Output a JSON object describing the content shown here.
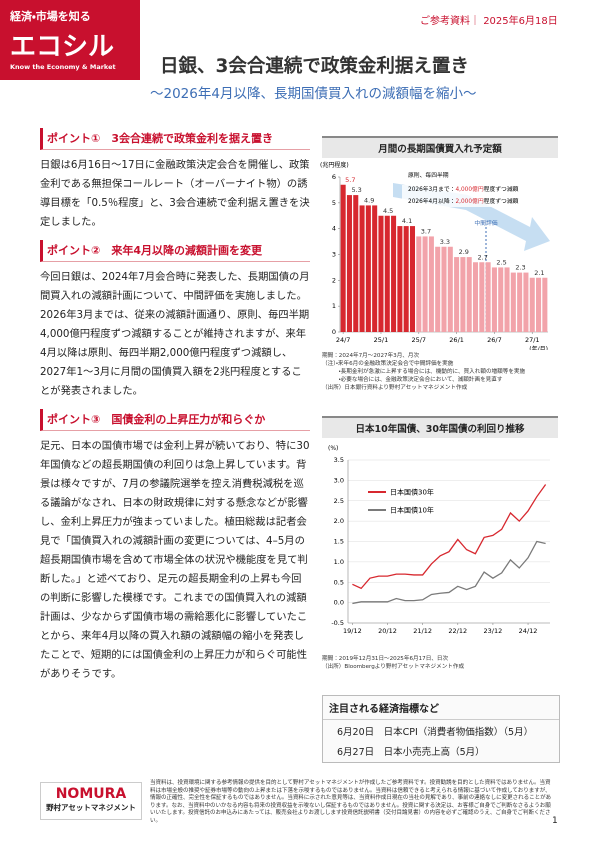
{
  "header": {
    "tagline": "経済・市場を知る",
    "logo": "エコシル",
    "logo_sub": "Know the Economy & Market",
    "doc_type": "ご参考資料",
    "date": "2025年6月18日",
    "title": "日銀、3会合連続で政策金利据え置き",
    "subtitle": "～2026年4月以降、長期国債買入れの減額幅を縮小～"
  },
  "points": [
    {
      "heading": "ポイント①　3会合連続で政策金利を据え置き",
      "text": "日銀は6月16日～17日に金融政策決定会合を開催し、政策金利である無担保コールレート（オーバーナイト物）の誘導目標を「0.5％程度」と、3会合連続で金利据え置きを決定しました。"
    },
    {
      "heading": "ポイント②　来年4月以降の減額計画を変更",
      "text": "今回日銀は、2024年7月会合時に発表した、長期国債の月間買入れの減額計画について、中間評価を実施しました。2026年3月までは、従来の減額計画通り、原則、毎四半期4,000億円程度ずつ減額することが維持されますが、来年4月以降は原則、毎四半期2,000億円程度ずつ減額し、2027年1～3月に月間の国債買入額を2兆円程度とすることが発表されました。"
    },
    {
      "heading": "ポイント③　国債金利の上昇圧力が和らぐか",
      "text": "足元、日本の国債市場では金利上昇が続いており、特に30年国債などの超長期国債の利回りは急上昇しています。背景は様々ですが、7月の参議院選挙を控え消費税減税を巡る議論がなされ、日本の財政規律に対する懸念などが影響し、金利上昇圧力が強まっていました。植田総裁は記者会見で「国債買入れの減額計画の変更については、4–5月の超長期国債市場を含めて市場全体の状況や機能度を見て判断した。」と述べており、足元の超長期金利の上昇も今回の判断に影響した模様です。これまでの国債買入れの減額計画は、少なからず国債市場の需給悪化に影響していたことから、来年4月以降の買入れ額の減額幅の縮小を発表したことで、短期的には国債金利の上昇圧力が和らぐ可能性がありそうです。"
    }
  ],
  "chart_data": [
    {
      "type": "bar",
      "title": "月間の長期国債買入れ予定額",
      "y_label": "(兆円程度)",
      "x_label": "(年/月)",
      "categories": [
        "24/7",
        null,
        null,
        null,
        null,
        null,
        "25/1",
        null,
        null,
        null,
        null,
        null,
        "25/7",
        null,
        null,
        null,
        null,
        null,
        "26/1",
        null,
        null,
        null,
        null,
        null,
        "26/7",
        null,
        null,
        null,
        null,
        null,
        "27/1",
        null,
        null
      ],
      "values": [
        5.7,
        5.3,
        5.3,
        4.9,
        4.9,
        4.9,
        4.5,
        4.5,
        4.5,
        4.1,
        4.1,
        4.1,
        3.7,
        3.7,
        3.7,
        3.3,
        3.3,
        3.3,
        2.9,
        2.9,
        2.9,
        2.7,
        2.7,
        2.7,
        2.5,
        2.5,
        2.5,
        2.3,
        2.3,
        2.3,
        2.1,
        2.1,
        2.1
      ],
      "value_labels": [
        "5.7",
        "5.3",
        null,
        "4.9",
        null,
        null,
        "4.5",
        null,
        null,
        "4.1",
        null,
        null,
        "3.7",
        null,
        null,
        "3.3",
        null,
        null,
        "2.9",
        null,
        null,
        "2.7",
        null,
        null,
        "2.5",
        null,
        null,
        "2.3",
        null,
        null,
        "2.1",
        null,
        null
      ],
      "colors": [
        "#d7282f",
        "#d7282f",
        "#d7282f",
        "#d7282f",
        "#d7282f",
        "#d7282f",
        "#d7282f",
        "#d7282f",
        "#d7282f",
        "#d7282f",
        "#d7282f",
        "#d7282f",
        "#f2a3aa",
        "#f2a3aa",
        "#f2a3aa",
        "#f2a3aa",
        "#f2a3aa",
        "#f2a3aa",
        "#f2a3aa",
        "#f2a3aa",
        "#f2a3aa",
        "#f2a3aa",
        "#f2a3aa",
        "#f2a3aa",
        "#f2a3aa",
        "#f2a3aa",
        "#f2a3aa",
        "#f2a3aa",
        "#f2a3aa",
        "#f2a3aa",
        "#f2a3aa",
        "#f2a3aa",
        "#f2a3aa"
      ],
      "ylim": [
        0,
        6
      ],
      "yticks": [
        0,
        1,
        2,
        3,
        4,
        5,
        6
      ],
      "grid": false,
      "annotations": {
        "rule": "原則、毎四半期",
        "before_prefix": "2026年3月まで：",
        "before_amount": "4,000億円",
        "before_suffix": "程度ずつ減額",
        "after_prefix": "2026年4月以降：",
        "after_amount": "2,000億円",
        "after_suffix": "程度ずつ減額",
        "review": "中間評価"
      },
      "notes": [
        "期間：2024年7月～2027年3月、月次",
        "（注）・来年6月の金融政策決定会合で中間評価を実施",
        "　　　・長期金利が急激に上昇する場合には、機動的に、買入れ額の増額等を実施",
        "　　　・必要な場合には、金融政策決定会合において、減額計画を見直す",
        "（出所）日本銀行資料より野村アセットマネジメント作成"
      ]
    },
    {
      "type": "line",
      "title": "日本10年国債、30年国債の利回り推移",
      "y_label": "(%)",
      "categories": [
        "19/12",
        null,
        null,
        null,
        "20/12",
        null,
        null,
        null,
        "21/12",
        null,
        null,
        null,
        "22/12",
        null,
        null,
        null,
        "23/12",
        null,
        null,
        null,
        "24/12",
        null,
        null
      ],
      "series": [
        {
          "name": "日本国債30年",
          "color": "#d7282f",
          "values": [
            0.45,
            0.35,
            0.6,
            0.65,
            0.65,
            0.7,
            0.7,
            0.68,
            0.68,
            0.95,
            1.15,
            1.25,
            1.55,
            1.3,
            1.2,
            1.6,
            1.65,
            1.8,
            2.2,
            2.0,
            2.25,
            2.6,
            2.9
          ]
        },
        {
          "name": "日本国債10年",
          "color": "#7a7a7a",
          "values": [
            -0.02,
            0.02,
            0.02,
            0.02,
            0.02,
            0.1,
            0.05,
            0.05,
            0.07,
            0.2,
            0.23,
            0.25,
            0.4,
            0.32,
            0.4,
            0.75,
            0.6,
            0.73,
            1.05,
            0.85,
            1.1,
            1.5,
            1.45
          ]
        }
      ],
      "ylim": [
        -0.5,
        3.5
      ],
      "yticks": [
        -0.5,
        {
          "value": 0,
          "label": "0.0"
        },
        0.5,
        {
          "value": 1,
          "label": "1.0"
        },
        1.5,
        {
          "value": 2,
          "label": "2.0"
        },
        2.5,
        {
          "value": 3,
          "label": "3.0"
        },
        3.5
      ],
      "grid": true,
      "notes": [
        "期間：2019年12月31日～2025年6月17日、日次",
        "（出所）Bloombergより野村アセットマネジメント作成"
      ]
    }
  ],
  "indicators": {
    "title": "注目される経済指標など",
    "items": [
      "6月20日　日本CPI（消費者物価指数）（5月）",
      "6月27日　日本小売売上高（5月）"
    ]
  },
  "footer": {
    "brand": "NOMURA",
    "company": "野村アセットマネジメント",
    "page": "1",
    "disclaimer": "当資料は、投資環境に関する参考情報の提供を目的として野村アセットマネジメントが作成したご参考資料です。投資勧誘を目的とした資料ではありません。当資料は市場全般の推奨や証券市場等の動向の上昇または下落を示唆するものではありません。当資料は信頼できると考えられる情報に基づいて作成しておりますが、情報の正確性、完全性を保証するものではありません。当資料に示された意見等は、当資料作成日現在の当社の見解であり、事前の連絡なしに変更されることがあります。なお、当資料中のいかなる内容も将来の投資収益を示唆ないし保証するものではありません。投資に関する決定は、お客様ご自身でご判断なさるようお願いいたします。投資信託のお申込みにあたっては、販売会社よりお渡しします投資信託説明書（交付目論見書）の内容を必ずご確認のうえ、ご自身でご判断ください。"
  }
}
